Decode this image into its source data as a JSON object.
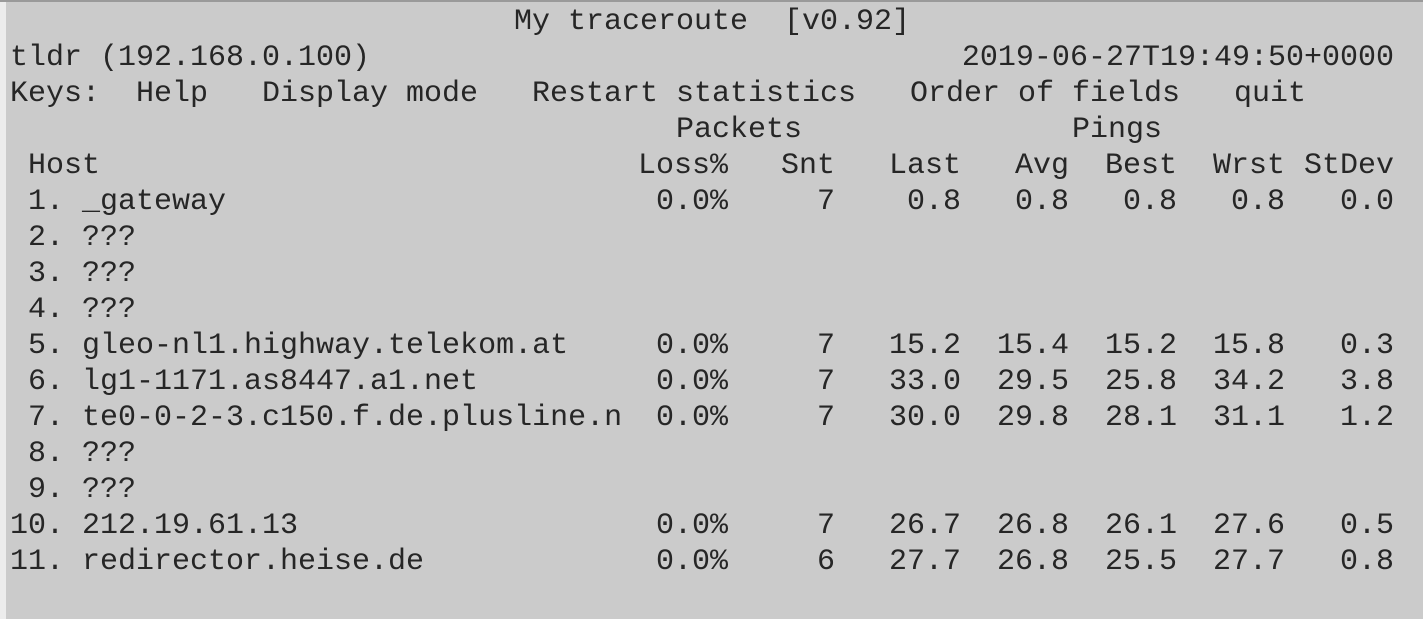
{
  "header": {
    "title": "My traceroute  [v0.92]",
    "host": "tldr (192.168.0.100)",
    "timestamp": "2019-06-27T19:49:50+0000"
  },
  "keys": {
    "label": "Keys:",
    "items": [
      "Help",
      "Display mode",
      "Restart statistics",
      "Order of fields",
      "quit"
    ]
  },
  "table": {
    "groups": [
      "Packets",
      "Pings"
    ],
    "columns": [
      "Host",
      "Loss%",
      "Snt",
      "Last",
      "Avg",
      "Best",
      "Wrst",
      "StDev"
    ],
    "rows": [
      [
        "1.",
        "_gateway",
        "0.0%",
        "7",
        "0.8",
        "0.8",
        "0.8",
        "0.8",
        "0.0"
      ],
      [
        "2.",
        "???"
      ],
      [
        "3.",
        "???"
      ],
      [
        "4.",
        "???"
      ],
      [
        "5.",
        "gleo-nl1.highway.telekom.at",
        "0.0%",
        "7",
        "15.2",
        "15.4",
        "15.2",
        "15.8",
        "0.3"
      ],
      [
        "6.",
        "lg1-1171.as8447.a1.net",
        "0.0%",
        "7",
        "33.0",
        "29.5",
        "25.8",
        "34.2",
        "3.8"
      ],
      [
        "7.",
        "te0-0-2-3.c150.f.de.plusline.n",
        "0.0%",
        "7",
        "30.0",
        "29.8",
        "28.1",
        "31.1",
        "1.2"
      ],
      [
        "8.",
        "???"
      ],
      [
        "9.",
        "???"
      ],
      [
        "10.",
        "212.19.61.13",
        "0.0%",
        "7",
        "26.7",
        "26.8",
        "26.1",
        "27.6",
        "0.5"
      ],
      [
        "11.",
        "redirector.heise.de",
        "0.0%",
        "6",
        "27.7",
        "26.8",
        "25.5",
        "27.7",
        "0.8"
      ]
    ]
  }
}
